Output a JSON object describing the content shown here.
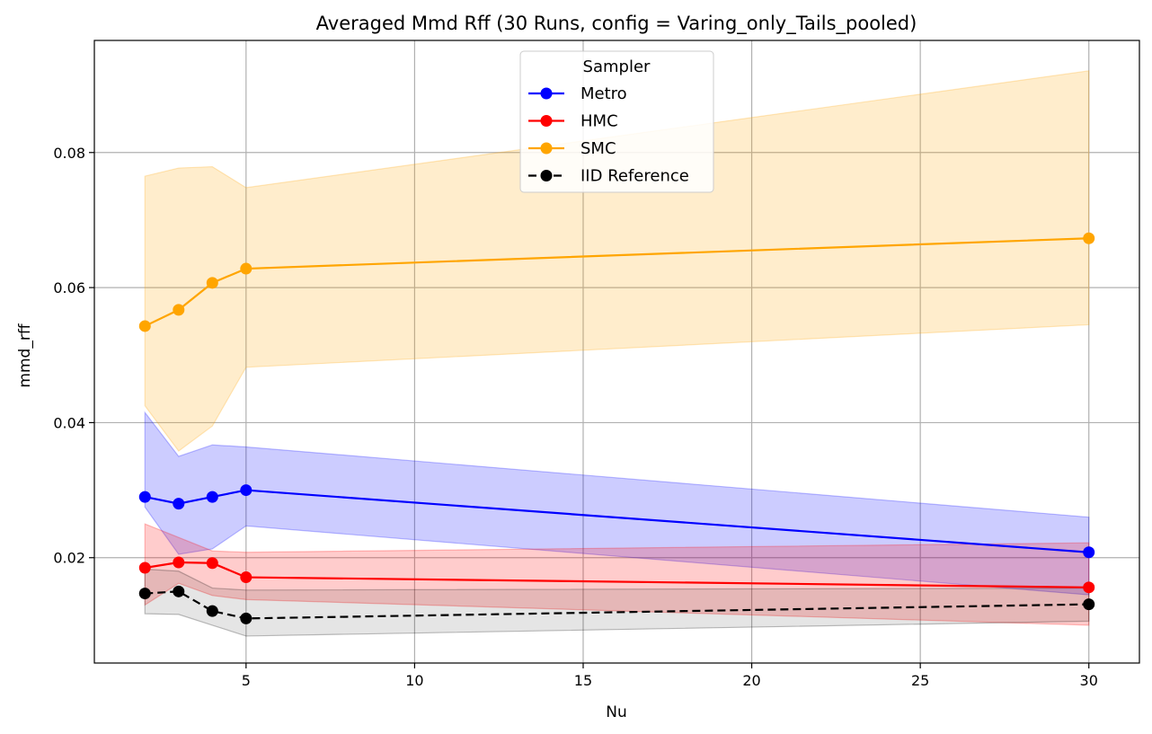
{
  "chart_data": {
    "type": "line",
    "title": "Averaged Mmd Rff (30 Runs, config = Varing_only_Tails_pooled)",
    "xlabel": "Nu",
    "ylabel": "mmd_rff",
    "xlim": [
      0.5,
      31.5
    ],
    "ylim": [
      0.0044,
      0.0966
    ],
    "xticks": [
      5,
      10,
      15,
      20,
      25,
      30
    ],
    "yticks": [
      0.02,
      0.04,
      0.06,
      0.08
    ],
    "ytick_labels": [
      "0.02",
      "0.04",
      "0.06",
      "0.08"
    ],
    "grid": true,
    "legend": {
      "title": "Sampler",
      "placement": "top-center"
    },
    "x": [
      2,
      3,
      4,
      5,
      30
    ],
    "series": [
      {
        "name": "Metro",
        "color": "#0000ff",
        "dashed": false,
        "values": [
          0.029,
          0.028,
          0.029,
          0.03,
          0.0208
        ],
        "band_upper": [
          0.0415,
          0.035,
          0.0367,
          0.0364,
          0.026
        ],
        "band_lower": [
          0.0275,
          0.0205,
          0.0213,
          0.0247,
          0.0145
        ]
      },
      {
        "name": "HMC",
        "color": "#ff0000",
        "dashed": false,
        "values": [
          0.0185,
          0.0193,
          0.0192,
          0.0171,
          0.0156
        ],
        "band_upper": [
          0.025,
          0.023,
          0.021,
          0.0208,
          0.0222
        ],
        "band_lower": [
          0.013,
          0.0162,
          0.0144,
          0.0138,
          0.01
        ]
      },
      {
        "name": "SMC",
        "color": "#ffa500",
        "dashed": false,
        "values": [
          0.0543,
          0.0567,
          0.0607,
          0.0628,
          0.0673
        ],
        "band_upper": [
          0.0765,
          0.0777,
          0.0779,
          0.0748,
          0.0921
        ],
        "band_lower": [
          0.0425,
          0.0358,
          0.0395,
          0.0482,
          0.0545
        ]
      },
      {
        "name": "IID Reference",
        "color": "#000000",
        "dashed": true,
        "values": [
          0.0147,
          0.015,
          0.0121,
          0.011,
          0.0131
        ],
        "band_upper": [
          0.0183,
          0.018,
          0.0155,
          0.0152,
          0.0155
        ],
        "band_lower": [
          0.0117,
          0.0116,
          0.01,
          0.0084,
          0.0106
        ]
      }
    ]
  }
}
